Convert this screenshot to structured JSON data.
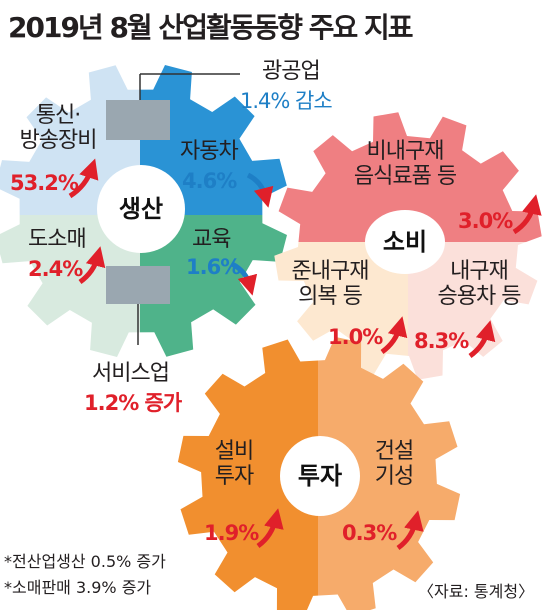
{
  "title": "2019년 8월 산업활동동향 주요 지표",
  "production": {
    "hub": "생산",
    "mining": {
      "label": "광공업",
      "value": "1.4% 감소"
    },
    "telecom": {
      "label_line1": "통신·",
      "label_line2": "방송장비",
      "value": "53.2%",
      "trend": "up"
    },
    "auto": {
      "label": "자동차",
      "value": "4.6%",
      "trend": "down"
    },
    "wholesale": {
      "label": "도소매",
      "value": "2.4%",
      "trend": "up"
    },
    "education": {
      "label": "교육",
      "value": "1.6%",
      "trend": "down"
    },
    "service": {
      "label": "서비스업",
      "value": "1.2% 증가"
    }
  },
  "consumption": {
    "hub": "소비",
    "nondurable": {
      "label_line1": "비내구재",
      "label_line2": "음식료품 등",
      "value": "3.0%",
      "trend": "up"
    },
    "semidurable": {
      "label_line1": "준내구재",
      "label_line2": "의복 등",
      "value": "1.0%",
      "trend": "up"
    },
    "durable": {
      "label_line1": "내구재",
      "label_line2": "승용차 등",
      "value": "8.3%",
      "trend": "up"
    }
  },
  "investment": {
    "hub": "투자",
    "facility": {
      "label_line1": "설비",
      "label_line2": "투자",
      "value": "1.9%",
      "trend": "up"
    },
    "construction": {
      "label_line1": "건설",
      "label_line2": "기성",
      "value": "0.3%",
      "trend": "up"
    }
  },
  "notes": {
    "line1": "*전산업생산 0.5% 증가",
    "line2": "*소매판매 3.9% 증가"
  },
  "source": "〈자료: 통계청〉",
  "colors": {
    "telecom_quadrant": "#cfe3f3",
    "auto_quadrant": "#2a93d5",
    "wholesale_quadrant": "#d8eadf",
    "education_quadrant": "#4fb38a",
    "nondurable_half": "#ef7f82",
    "semidurable_quadrant": "#fde8d0",
    "durable_quadrant": "#fbe0da",
    "facility_half": "#f18f2f",
    "construction_half": "#f6ab6b",
    "up_arrow": "#e0202a",
    "down_arrow": "#1e7fc6"
  }
}
